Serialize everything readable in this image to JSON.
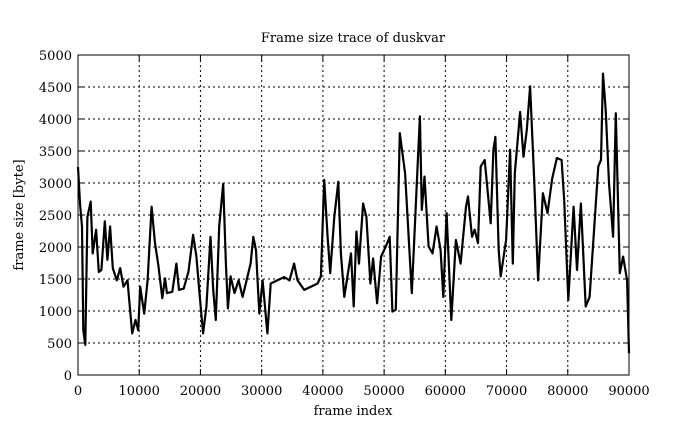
{
  "chart_data": {
    "type": "line",
    "title": "Frame size trace of duskvar",
    "xlabel": "frame index",
    "ylabel": "frame size [byte]",
    "xlim": [
      0,
      90000
    ],
    "ylim": [
      0,
      5000
    ],
    "grid": true,
    "xticks": [
      "0",
      "10000",
      "20000",
      "30000",
      "40000",
      "50000",
      "60000",
      "70000",
      "80000",
      "90000"
    ],
    "yticks": [
      "0",
      "500",
      "1000",
      "1500",
      "2000",
      "2500",
      "3000",
      "3500",
      "4000",
      "4500",
      "5000"
    ],
    "series": [
      {
        "color": "#000000",
        "x": [
          0,
          330,
          650,
          870,
          1200,
          1530,
          2080,
          2400,
          2950,
          3390,
          3830,
          4370,
          4810,
          5250,
          5680,
          6340,
          6890,
          7430,
          8090,
          8420,
          8850,
          9400,
          9840,
          10160,
          10820,
          11370,
          12020,
          12570,
          13110,
          13770,
          14210,
          14540,
          15410,
          16070,
          16500,
          17270,
          18030,
          18800,
          19340,
          19890,
          20440,
          20980,
          21640,
          22080,
          22510,
          23060,
          23720,
          24150,
          24480,
          24920,
          25570,
          26230,
          26890,
          27540,
          28200,
          28630,
          29070,
          29620,
          30160,
          30930,
          31480,
          32570,
          33660,
          34540,
          35300,
          35850,
          36940,
          38030,
          39130,
          39670,
          40220,
          40770,
          41200,
          41860,
          42510,
          42950,
          43500,
          44590,
          45030,
          45470,
          45900,
          46560,
          47100,
          47760,
          48200,
          48850,
          49500,
          50270,
          50920,
          51360,
          51910,
          52560,
          53430,
          54530,
          55290,
          55840,
          56160,
          56600,
          57260,
          57910,
          58570,
          59220,
          59660,
          60200,
          60970,
          61730,
          62500,
          63370,
          63700,
          64350,
          64790,
          65340,
          65770,
          66430,
          67410,
          67850,
          68180,
          68720,
          69050,
          69920,
          70580,
          71020,
          71340,
          72220,
          72760,
          73310,
          73850,
          74510,
          75160,
          75930,
          76690,
          77460,
          78220,
          78990,
          79420,
          80080,
          80950,
          81500,
          82150,
          82920,
          83570,
          84990,
          85430,
          85760,
          86200,
          86740,
          87400,
          87840,
          88490,
          89040,
          89690,
          90000
        ],
        "y": [
          3250,
          2680,
          2320,
          700,
          470,
          2470,
          2710,
          1900,
          2270,
          1610,
          1640,
          2400,
          1800,
          2320,
          1670,
          1480,
          1670,
          1380,
          1480,
          1120,
          650,
          860,
          700,
          1380,
          960,
          1480,
          2630,
          2060,
          1720,
          1200,
          1510,
          1280,
          1300,
          1740,
          1330,
          1350,
          1610,
          2190,
          1850,
          1220,
          650,
          1070,
          2160,
          1330,
          860,
          2320,
          2990,
          1740,
          1040,
          1540,
          1280,
          1480,
          1220,
          1480,
          1740,
          2160,
          1950,
          960,
          1480,
          650,
          1430,
          1480,
          1530,
          1480,
          1740,
          1480,
          1330,
          1380,
          1430,
          1540,
          3050,
          2160,
          1590,
          2470,
          3020,
          1900,
          1220,
          1900,
          1070,
          2240,
          1740,
          2680,
          2470,
          1430,
          1820,
          1120,
          1850,
          2010,
          2160,
          990,
          1020,
          3780,
          3150,
          1280,
          2890,
          4040,
          2580,
          3100,
          2010,
          1900,
          2320,
          1950,
          1220,
          2530,
          860,
          2110,
          1740,
          2630,
          2790,
          2160,
          2270,
          2060,
          3260,
          3360,
          2370,
          3520,
          3720,
          1950,
          1540,
          2110,
          3520,
          1740,
          3150,
          4110,
          3410,
          3830,
          4510,
          3050,
          1480,
          2840,
          2530,
          3070,
          3390,
          3360,
          2730,
          1170,
          2630,
          1640,
          2680,
          1070,
          1220,
          3260,
          3360,
          4710,
          4140,
          3000,
          2160,
          4090,
          1590,
          1850,
          1480,
          340
        ]
      }
    ]
  }
}
